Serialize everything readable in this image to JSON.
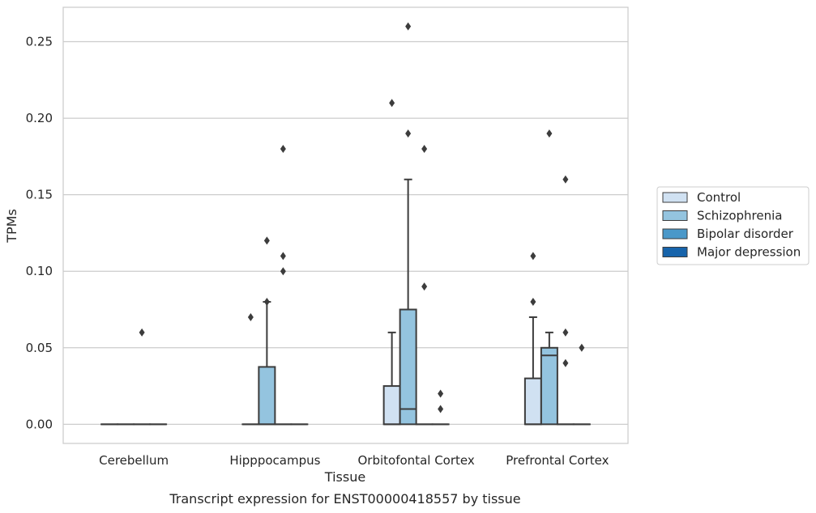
{
  "caption": "Transcript expression for ENST00000418557 by tissue",
  "chart_data": {
    "type": "box",
    "xlabel": "Tissue",
    "ylabel": "TPMs",
    "ylim": [
      -0.0125,
      0.2725
    ],
    "yticks": [
      0.0,
      0.05,
      0.1,
      0.15,
      0.2,
      0.25
    ],
    "ytick_labels": [
      "0.00",
      "0.05",
      "0.10",
      "0.15",
      "0.20",
      "0.25"
    ],
    "grid": "horizontal",
    "legend_position": "right",
    "categories": [
      "Cerebellum",
      "Hipppocampus",
      "Orbitofontal Cortex",
      "Prefrontal Cortex"
    ],
    "series": [
      {
        "name": "Control",
        "color": "#d0e1f2",
        "boxes": [
          {
            "q1": 0.0,
            "median": 0.0,
            "q3": 0.0,
            "whislo": 0.0,
            "whishi": 0.0,
            "fliers": []
          },
          {
            "q1": 0.0,
            "median": 0.0,
            "q3": 0.0,
            "whislo": 0.0,
            "whishi": 0.0,
            "fliers": [
              0.07
            ]
          },
          {
            "q1": 0.0,
            "median": 0.0,
            "q3": 0.025,
            "whislo": 0.0,
            "whishi": 0.06,
            "fliers": [
              0.21
            ]
          },
          {
            "q1": 0.0,
            "median": 0.0,
            "q3": 0.03,
            "whislo": 0.0,
            "whishi": 0.07,
            "fliers": [
              0.08,
              0.11
            ]
          }
        ]
      },
      {
        "name": "Schizophrenia",
        "color": "#94c4df",
        "boxes": [
          {
            "q1": 0.0,
            "median": 0.0,
            "q3": 0.0,
            "whislo": 0.0,
            "whishi": 0.0,
            "fliers": []
          },
          {
            "q1": 0.0,
            "median": 0.0,
            "q3": 0.0375,
            "whislo": 0.0,
            "whishi": 0.08,
            "fliers": [
              0.08,
              0.12
            ]
          },
          {
            "q1": 0.0,
            "median": 0.01,
            "q3": 0.075,
            "whislo": 0.0,
            "whishi": 0.16,
            "fliers": [
              0.19,
              0.26
            ]
          },
          {
            "q1": 0.0,
            "median": 0.045,
            "q3": 0.05,
            "whislo": 0.0,
            "whishi": 0.06,
            "fliers": [
              0.19
            ]
          }
        ]
      },
      {
        "name": "Bipolar disorder",
        "color": "#4a98c9",
        "boxes": [
          {
            "q1": 0.0,
            "median": 0.0,
            "q3": 0.0,
            "whislo": 0.0,
            "whishi": 0.0,
            "fliers": [
              0.06
            ]
          },
          {
            "q1": 0.0,
            "median": 0.0,
            "q3": 0.0,
            "whislo": 0.0,
            "whishi": 0.0,
            "fliers": [
              0.1,
              0.11,
              0.18
            ]
          },
          {
            "q1": 0.0,
            "median": 0.0,
            "q3": 0.0,
            "whislo": 0.0,
            "whishi": 0.0,
            "fliers": [
              0.09,
              0.18
            ]
          },
          {
            "q1": 0.0,
            "median": 0.0,
            "q3": 0.0,
            "whislo": 0.0,
            "whishi": 0.0,
            "fliers": [
              0.04,
              0.06,
              0.16
            ]
          }
        ]
      },
      {
        "name": "Major depression",
        "color": "#1764ab",
        "boxes": [
          {
            "q1": 0.0,
            "median": 0.0,
            "q3": 0.0,
            "whislo": 0.0,
            "whishi": 0.0,
            "fliers": []
          },
          {
            "q1": 0.0,
            "median": 0.0,
            "q3": 0.0,
            "whislo": 0.0,
            "whishi": 0.0,
            "fliers": []
          },
          {
            "q1": 0.0,
            "median": 0.0,
            "q3": 0.0,
            "whislo": 0.0,
            "whishi": 0.0,
            "fliers": [
              0.01,
              0.02
            ]
          },
          {
            "q1": 0.0,
            "median": 0.0,
            "q3": 0.0,
            "whislo": 0.0,
            "whishi": 0.0,
            "fliers": [
              0.05
            ]
          }
        ]
      }
    ]
  }
}
